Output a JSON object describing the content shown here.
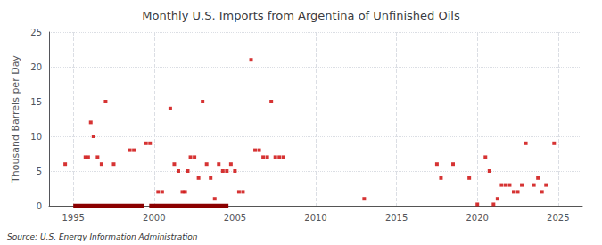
{
  "chart_data": {
    "type": "scatter",
    "title": "Monthly U.S. Imports from Argentina of Unfinished Oils",
    "ylabel": "Thousand Barrels per Day",
    "annotation": "Source: U.S. Energy Information Administration",
    "xlim": [
      1993.5,
      2026.5
    ],
    "ylim": [
      0,
      25
    ],
    "xticks": [
      1995,
      2000,
      2005,
      2010,
      2015,
      2020,
      2025
    ],
    "yticks": [
      0,
      5,
      10,
      15,
      20,
      25
    ],
    "grid": true,
    "series": [
      {
        "type": "scatter",
        "color": "#cc0000",
        "marker": "square",
        "x": [
          1994.5,
          1995.75,
          1995.92,
          1996.08,
          1996.25,
          1996.5,
          1996.75,
          1997.0,
          1997.5,
          1998.5,
          1998.75,
          1999.5,
          1999.75,
          2000.25,
          2000.5,
          2001.0,
          2001.25,
          2001.5,
          2001.75,
          2001.92,
          2002.08,
          2002.25,
          2002.5,
          2002.75,
          2003.0,
          2003.25,
          2003.5,
          2003.75,
          2004.0,
          2004.25,
          2004.5,
          2004.75,
          2005.0,
          2005.25,
          2005.5,
          2006.0,
          2006.25,
          2006.5,
          2006.75,
          2007.0,
          2007.25,
          2007.5,
          2007.75,
          2008.0,
          2013.0,
          2017.5,
          2017.75,
          2018.5,
          2019.5,
          2020.0,
          2020.5,
          2020.75,
          2021.0,
          2021.25,
          2021.5,
          2021.75,
          2022.0,
          2022.25,
          2022.5,
          2022.75,
          2023.0,
          2023.5,
          2023.75,
          2024.0,
          2024.25,
          2024.75
        ],
        "values": [
          6,
          7,
          7,
          12,
          10,
          7,
          6,
          15,
          6,
          8,
          8,
          9,
          9,
          2,
          2,
          14,
          6,
          5,
          2,
          2,
          5,
          7,
          7,
          4,
          15,
          6,
          4,
          1,
          6,
          5,
          5,
          6,
          5,
          2,
          2,
          21,
          8,
          8,
          7,
          7,
          15,
          7,
          7,
          7,
          1,
          6,
          4,
          6,
          4,
          0.2,
          7,
          5,
          0.2,
          1,
          3,
          3,
          3,
          2,
          2,
          3,
          9,
          3,
          4,
          2,
          3,
          9
        ]
      },
      {
        "type": "line",
        "color": "#8b0000",
        "ranges": [
          [
            1995.0,
            1999.4
          ],
          [
            1999.7,
            2004.6
          ]
        ],
        "values": [
          0,
          0
        ]
      }
    ]
  }
}
